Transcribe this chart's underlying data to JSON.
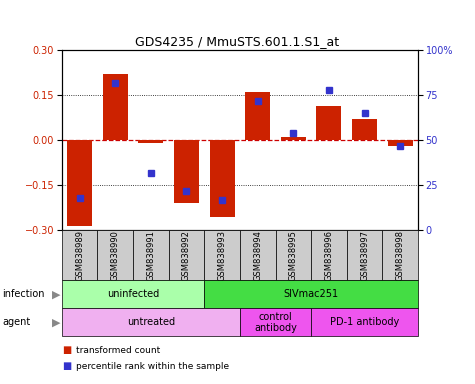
{
  "title": "GDS4235 / MmuSTS.601.1.S1_at",
  "samples": [
    "GSM838989",
    "GSM838990",
    "GSM838991",
    "GSM838992",
    "GSM838993",
    "GSM838994",
    "GSM838995",
    "GSM838996",
    "GSM838997",
    "GSM838998"
  ],
  "red_values": [
    -0.285,
    0.22,
    -0.01,
    -0.21,
    -0.255,
    0.16,
    0.01,
    0.115,
    0.07,
    -0.02
  ],
  "blue_values": [
    18,
    82,
    32,
    22,
    17,
    72,
    54,
    78,
    65,
    47
  ],
  "infection_groups": [
    {
      "label": "uninfected",
      "start": 0,
      "end": 4,
      "color": "#aaffaa"
    },
    {
      "label": "SIVmac251",
      "start": 4,
      "end": 10,
      "color": "#44dd44"
    }
  ],
  "agent_groups": [
    {
      "label": "untreated",
      "start": 0,
      "end": 5,
      "color": "#f0b0f0"
    },
    {
      "label": "control\nantibody",
      "start": 5,
      "end": 7,
      "color": "#ee55ee"
    },
    {
      "label": "PD-1 antibody",
      "start": 7,
      "end": 10,
      "color": "#ee55ee"
    }
  ],
  "ylim": [
    -0.3,
    0.3
  ],
  "yticks_left": [
    -0.3,
    -0.15,
    0.0,
    0.15,
    0.3
  ],
  "yticks_right": [
    0,
    25,
    50,
    75,
    100
  ],
  "red_color": "#cc2200",
  "blue_color": "#3333cc",
  "zero_line_color": "#cc0000",
  "sample_box_color": "#cccccc",
  "legend_red": "transformed count",
  "legend_blue": "percentile rank within the sample",
  "bar_width": 0.7,
  "title_fontsize": 9,
  "tick_fontsize": 7,
  "label_fontsize": 7,
  "sample_fontsize": 6
}
